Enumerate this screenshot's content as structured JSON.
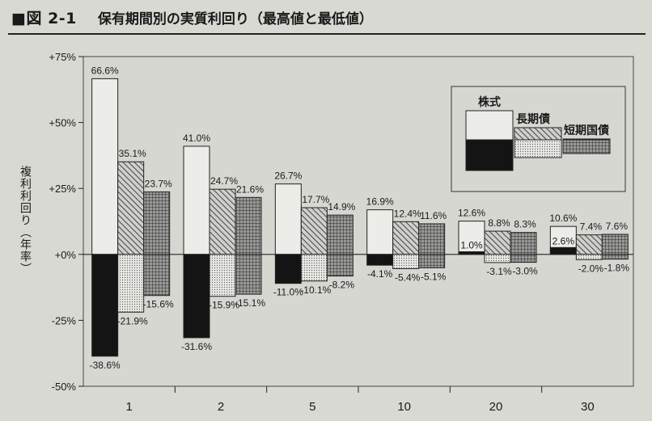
{
  "figure": {
    "label": "■図 2-1",
    "title": "保有期間別の実質利回り（最高値と最低値）"
  },
  "chart_data": {
    "type": "bar",
    "ylabel": "複利利回り（年率）",
    "ylim": [
      -50,
      75
    ],
    "yticks": [
      {
        "value": 75,
        "label": "+75%"
      },
      {
        "value": 50,
        "label": "+50%"
      },
      {
        "value": 25,
        "label": "+25%"
      },
      {
        "value": 0,
        "label": "+0%"
      },
      {
        "value": -25,
        "label": "-25%"
      },
      {
        "value": -50,
        "label": "-50%"
      }
    ],
    "categories": [
      "1",
      "2",
      "5",
      "10",
      "20",
      "30"
    ],
    "legend": {
      "placement": "top-right",
      "entries": [
        "株式",
        "長期債",
        "短期国債"
      ]
    },
    "series": [
      {
        "name": "株式",
        "max": [
          66.6,
          41.0,
          26.7,
          16.9,
          12.6,
          10.6
        ],
        "min": [
          -38.6,
          -31.6,
          -11.0,
          -4.1,
          1.0,
          2.6
        ],
        "max_labels": [
          "66.6%",
          "41.0%",
          "26.7%",
          "16.9%",
          "12.6%",
          "10.6%"
        ],
        "min_labels": [
          "-38.6%",
          "-31.6%",
          "-11.0%",
          "-4.1%",
          "1.0%",
          "2.6%"
        ]
      },
      {
        "name": "長期債",
        "max": [
          35.1,
          24.7,
          17.7,
          12.4,
          8.8,
          7.4
        ],
        "min": [
          -21.9,
          -15.9,
          -10.1,
          -5.4,
          -3.1,
          -2.0
        ],
        "max_labels": [
          "35.1%",
          "24.7%",
          "17.7%",
          "12.4%",
          "8.8%",
          "7.4%"
        ],
        "min_labels": [
          "-21.9%",
          "-15.9%",
          "-10.1%",
          "-5.4%",
          "-3.1%",
          "-2.0%"
        ]
      },
      {
        "name": "短期国債",
        "max": [
          23.7,
          21.6,
          14.9,
          11.6,
          8.3,
          7.6
        ],
        "min": [
          -15.6,
          -15.1,
          -8.2,
          -5.1,
          -3.0,
          -1.8
        ],
        "max_labels": [
          "23.7%",
          "21.6%",
          "14.9%",
          "11.6%",
          "8.3%",
          "7.6%"
        ],
        "min_labels": [
          "-15.6%",
          "-15.1%",
          "-8.2%",
          "-5.1%",
          "-3.0%",
          "-1.8%"
        ]
      }
    ],
    "grid": false
  }
}
